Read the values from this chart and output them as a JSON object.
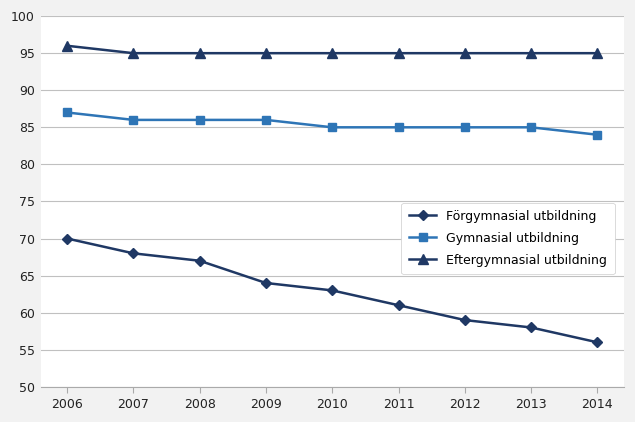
{
  "years": [
    2006,
    2007,
    2008,
    2009,
    2010,
    2011,
    2012,
    2013,
    2014
  ],
  "forgymnasial": [
    70,
    68,
    67,
    64,
    63,
    61,
    59,
    58,
    56
  ],
  "gymnasial": [
    87,
    86,
    86,
    86,
    85,
    85,
    85,
    85,
    84
  ],
  "eftergymnasial": [
    96,
    95,
    95,
    95,
    95,
    95,
    95,
    95,
    95
  ],
  "forgymnasial_label": "Förgymnasial utbildning",
  "gymnasial_label": "Gymnasial utbildning",
  "eftergymnasial_label": "Eftergymnasial utbildning",
  "color_dark": "#1f3864",
  "color_mid": "#2e75b6",
  "ylim": [
    50,
    100
  ],
  "yticks": [
    50,
    55,
    60,
    65,
    70,
    75,
    80,
    85,
    90,
    95,
    100
  ],
  "background_color": "#f2f2f2",
  "plot_bg_color": "#ffffff",
  "grid_color": "#c0c0c0"
}
